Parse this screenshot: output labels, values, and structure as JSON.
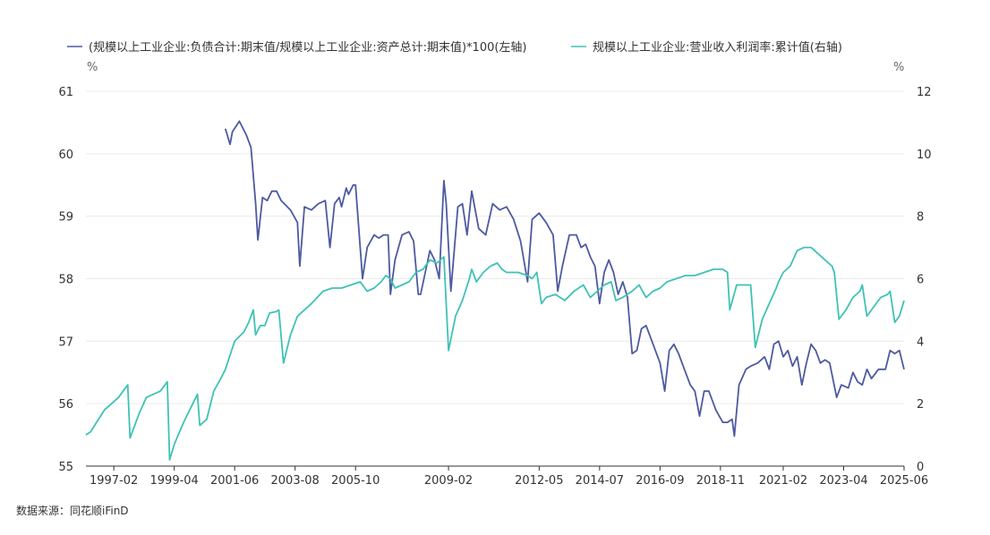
{
  "colors": {
    "left_series": "#4d5aa0",
    "right_series": "#3fc2b5",
    "grid": "#ebebeb",
    "axis": "#333333"
  },
  "source": "数据来源：同花顺iFinD",
  "chart_data": {
    "type": "line",
    "legend_position": "top",
    "grid": true,
    "y_left": {
      "unit": "%",
      "min": 55,
      "max": 61,
      "ticks": [
        "55",
        "56",
        "57",
        "58",
        "59",
        "60",
        "61"
      ]
    },
    "y_right": {
      "unit": "%",
      "min": 0,
      "max": 12,
      "ticks": [
        "0",
        "2",
        "4",
        "6",
        "8",
        "10",
        "12"
      ]
    },
    "x": {
      "min": "1996-02",
      "max": "2025-06",
      "tick_dates": [
        "1997-02",
        "1999-04",
        "2001-06",
        "2003-08",
        "2005-10",
        "2009-02",
        "2012-05",
        "2014-07",
        "2016-09",
        "2018-11",
        "2021-02",
        "2023-04",
        "2025-06"
      ]
    },
    "series": [
      {
        "name": "(规模以上工业企业:负债合计:期末值/规模以上工业企业:资产总计:期末值)*100(左轴)",
        "axis": "left",
        "points": [
          [
            "2001-02",
            60.4
          ],
          [
            "2001-04",
            60.15
          ],
          [
            "2001-05",
            60.35
          ],
          [
            "2001-08",
            60.52
          ],
          [
            "2001-11",
            60.3
          ],
          [
            "2002-01",
            60.1
          ],
          [
            "2002-03",
            59.2
          ],
          [
            "2002-04",
            58.62
          ],
          [
            "2002-06",
            59.3
          ],
          [
            "2002-08",
            59.25
          ],
          [
            "2002-10",
            59.4
          ],
          [
            "2002-12",
            59.4
          ],
          [
            "2003-02",
            59.25
          ],
          [
            "2003-06",
            59.1
          ],
          [
            "2003-09",
            58.9
          ],
          [
            "2003-10",
            58.2
          ],
          [
            "2003-12",
            59.15
          ],
          [
            "2004-03",
            59.1
          ],
          [
            "2004-06",
            59.2
          ],
          [
            "2004-09",
            59.25
          ],
          [
            "2004-11",
            58.5
          ],
          [
            "2005-01",
            59.2
          ],
          [
            "2005-03",
            59.3
          ],
          [
            "2005-04",
            59.15
          ],
          [
            "2005-06",
            59.45
          ],
          [
            "2005-07",
            59.35
          ],
          [
            "2005-09",
            59.5
          ],
          [
            "2005-10",
            59.5
          ],
          [
            "2005-11",
            59.0
          ],
          [
            "2006-01",
            58.0
          ],
          [
            "2006-03",
            58.5
          ],
          [
            "2006-06",
            58.7
          ],
          [
            "2006-08",
            58.65
          ],
          [
            "2006-10",
            58.7
          ],
          [
            "2006-12",
            58.7
          ],
          [
            "2007-01",
            57.75
          ],
          [
            "2007-03",
            58.3
          ],
          [
            "2007-06",
            58.7
          ],
          [
            "2007-09",
            58.75
          ],
          [
            "2007-11",
            58.6
          ],
          [
            "2008-01",
            57.75
          ],
          [
            "2008-02",
            57.75
          ],
          [
            "2008-04",
            58.1
          ],
          [
            "2008-06",
            58.45
          ],
          [
            "2008-08",
            58.3
          ],
          [
            "2008-10",
            58.0
          ],
          [
            "2008-12",
            59.57
          ],
          [
            "2009-01",
            59.2
          ],
          [
            "2009-03",
            57.8
          ],
          [
            "2009-06",
            59.15
          ],
          [
            "2009-08",
            59.2
          ],
          [
            "2009-10",
            58.7
          ],
          [
            "2009-12",
            59.4
          ],
          [
            "2010-03",
            58.8
          ],
          [
            "2010-06",
            58.7
          ],
          [
            "2010-09",
            59.2
          ],
          [
            "2010-12",
            59.1
          ],
          [
            "2011-03",
            59.15
          ],
          [
            "2011-06",
            58.95
          ],
          [
            "2011-09",
            58.6
          ],
          [
            "2011-12",
            57.95
          ],
          [
            "2012-02",
            58.95
          ],
          [
            "2012-05",
            59.05
          ],
          [
            "2012-08",
            58.9
          ],
          [
            "2012-11",
            58.7
          ],
          [
            "2013-01",
            57.8
          ],
          [
            "2013-03",
            58.2
          ],
          [
            "2013-06",
            58.7
          ],
          [
            "2013-09",
            58.7
          ],
          [
            "2013-11",
            58.5
          ],
          [
            "2014-01",
            58.55
          ],
          [
            "2014-03",
            58.35
          ],
          [
            "2014-05",
            58.2
          ],
          [
            "2014-07",
            57.6
          ],
          [
            "2014-09",
            58.1
          ],
          [
            "2014-11",
            58.3
          ],
          [
            "2015-01",
            58.1
          ],
          [
            "2015-03",
            57.75
          ],
          [
            "2015-05",
            57.95
          ],
          [
            "2015-07",
            57.7
          ],
          [
            "2015-09",
            56.8
          ],
          [
            "2015-11",
            56.85
          ],
          [
            "2016-01",
            57.2
          ],
          [
            "2016-03",
            57.25
          ],
          [
            "2016-05",
            57.05
          ],
          [
            "2016-07",
            56.85
          ],
          [
            "2016-09",
            56.65
          ],
          [
            "2016-11",
            56.2
          ],
          [
            "2017-01",
            56.85
          ],
          [
            "2017-03",
            56.95
          ],
          [
            "2017-05",
            56.8
          ],
          [
            "2017-08",
            56.5
          ],
          [
            "2017-10",
            56.3
          ],
          [
            "2017-12",
            56.2
          ],
          [
            "2018-02",
            55.8
          ],
          [
            "2018-04",
            56.2
          ],
          [
            "2018-06",
            56.2
          ],
          [
            "2018-09",
            55.9
          ],
          [
            "2018-12",
            55.7
          ],
          [
            "2019-02",
            55.7
          ],
          [
            "2019-04",
            55.75
          ],
          [
            "2019-05",
            55.48
          ],
          [
            "2019-07",
            56.3
          ],
          [
            "2019-10",
            56.55
          ],
          [
            "2019-12",
            56.6
          ],
          [
            "2020-03",
            56.65
          ],
          [
            "2020-06",
            56.75
          ],
          [
            "2020-08",
            56.55
          ],
          [
            "2020-10",
            56.95
          ],
          [
            "2020-12",
            57.0
          ],
          [
            "2021-02",
            56.75
          ],
          [
            "2021-04",
            56.85
          ],
          [
            "2021-06",
            56.6
          ],
          [
            "2021-08",
            56.75
          ],
          [
            "2021-10",
            56.3
          ],
          [
            "2021-12",
            56.65
          ],
          [
            "2022-02",
            56.95
          ],
          [
            "2022-04",
            56.85
          ],
          [
            "2022-06",
            56.65
          ],
          [
            "2022-08",
            56.7
          ],
          [
            "2022-10",
            56.65
          ],
          [
            "2023-01",
            56.1
          ],
          [
            "2023-03",
            56.3
          ],
          [
            "2023-06",
            56.25
          ],
          [
            "2023-08",
            56.5
          ],
          [
            "2023-10",
            56.35
          ],
          [
            "2023-12",
            56.3
          ],
          [
            "2024-02",
            56.55
          ],
          [
            "2024-04",
            56.4
          ],
          [
            "2024-07",
            56.55
          ],
          [
            "2024-10",
            56.55
          ],
          [
            "2024-12",
            56.85
          ],
          [
            "2025-02",
            56.8
          ],
          [
            "2025-04",
            56.85
          ],
          [
            "2025-06",
            56.55
          ]
        ]
      },
      {
        "name": "规模以上工业企业:营业收入利润率:累计值(右轴)",
        "axis": "right",
        "points": [
          [
            "1996-02",
            1.0
          ],
          [
            "1996-04",
            1.1
          ],
          [
            "1996-10",
            1.8
          ],
          [
            "1997-04",
            2.2
          ],
          [
            "1997-08",
            2.6
          ],
          [
            "1997-09",
            0.9
          ],
          [
            "1998-01",
            1.7
          ],
          [
            "1998-04",
            2.2
          ],
          [
            "1998-10",
            2.4
          ],
          [
            "1999-01",
            2.7
          ],
          [
            "1999-02",
            0.2
          ],
          [
            "1999-04",
            0.7
          ],
          [
            "1999-08",
            1.4
          ],
          [
            "1999-12",
            2.0
          ],
          [
            "2000-02",
            2.3
          ],
          [
            "2000-03",
            1.3
          ],
          [
            "2000-06",
            1.5
          ],
          [
            "2000-09",
            2.4
          ],
          [
            "2000-12",
            2.8
          ],
          [
            "2001-02",
            3.1
          ],
          [
            "2001-06",
            4.0
          ],
          [
            "2001-10",
            4.3
          ],
          [
            "2001-12",
            4.6
          ],
          [
            "2002-02",
            5.0
          ],
          [
            "2002-03",
            4.2
          ],
          [
            "2002-05",
            4.5
          ],
          [
            "2002-07",
            4.5
          ],
          [
            "2002-09",
            4.9
          ],
          [
            "2002-12",
            4.95
          ],
          [
            "2003-01",
            5.0
          ],
          [
            "2003-03",
            3.3
          ],
          [
            "2003-06",
            4.2
          ],
          [
            "2003-09",
            4.8
          ],
          [
            "2003-12",
            5.0
          ],
          [
            "2004-03",
            5.2
          ],
          [
            "2004-08",
            5.6
          ],
          [
            "2004-12",
            5.7
          ],
          [
            "2005-04",
            5.7
          ],
          [
            "2005-08",
            5.8
          ],
          [
            "2005-12",
            5.9
          ],
          [
            "2006-03",
            5.6
          ],
          [
            "2006-06",
            5.7
          ],
          [
            "2006-09",
            5.9
          ],
          [
            "2006-11",
            6.1
          ],
          [
            "2007-01",
            6.0
          ],
          [
            "2007-03",
            5.7
          ],
          [
            "2007-06",
            5.8
          ],
          [
            "2007-09",
            5.9
          ],
          [
            "2007-12",
            6.2
          ],
          [
            "2008-03",
            6.3
          ],
          [
            "2008-06",
            6.6
          ],
          [
            "2008-09",
            6.5
          ],
          [
            "2008-12",
            6.7
          ],
          [
            "2009-02",
            3.7
          ],
          [
            "2009-05",
            4.8
          ],
          [
            "2009-08",
            5.3
          ],
          [
            "2009-11",
            6.0
          ],
          [
            "2009-12",
            6.3
          ],
          [
            "2010-02",
            5.9
          ],
          [
            "2010-05",
            6.2
          ],
          [
            "2010-08",
            6.4
          ],
          [
            "2010-11",
            6.5
          ],
          [
            "2011-01",
            6.3
          ],
          [
            "2011-03",
            6.2
          ],
          [
            "2011-08",
            6.2
          ],
          [
            "2011-12",
            6.1
          ],
          [
            "2012-02",
            6.0
          ],
          [
            "2012-04",
            6.2
          ],
          [
            "2012-06",
            5.2
          ],
          [
            "2012-08",
            5.4
          ],
          [
            "2012-12",
            5.5
          ],
          [
            "2013-04",
            5.3
          ],
          [
            "2013-08",
            5.6
          ],
          [
            "2013-12",
            5.8
          ],
          [
            "2014-03",
            5.4
          ],
          [
            "2014-06",
            5.6
          ],
          [
            "2014-09",
            5.8
          ],
          [
            "2014-12",
            5.9
          ],
          [
            "2015-02",
            5.3
          ],
          [
            "2015-05",
            5.4
          ],
          [
            "2015-09",
            5.6
          ],
          [
            "2015-12",
            5.8
          ],
          [
            "2016-03",
            5.4
          ],
          [
            "2016-06",
            5.6
          ],
          [
            "2016-09",
            5.7
          ],
          [
            "2016-12",
            5.9
          ],
          [
            "2017-04",
            6.0
          ],
          [
            "2017-08",
            6.1
          ],
          [
            "2017-12",
            6.1
          ],
          [
            "2018-04",
            6.2
          ],
          [
            "2018-08",
            6.3
          ],
          [
            "2018-12",
            6.3
          ],
          [
            "2019-02",
            6.2
          ],
          [
            "2019-03",
            5.0
          ],
          [
            "2019-06",
            5.8
          ],
          [
            "2019-09",
            5.8
          ],
          [
            "2019-12",
            5.8
          ],
          [
            "2020-02",
            3.8
          ],
          [
            "2020-05",
            4.7
          ],
          [
            "2020-08",
            5.2
          ],
          [
            "2020-11",
            5.7
          ],
          [
            "2020-12",
            5.9
          ],
          [
            "2021-02",
            6.2
          ],
          [
            "2021-05",
            6.4
          ],
          [
            "2021-08",
            6.9
          ],
          [
            "2021-11",
            7.0
          ],
          [
            "2022-02",
            7.0
          ],
          [
            "2022-05",
            6.8
          ],
          [
            "2022-08",
            6.6
          ],
          [
            "2022-11",
            6.4
          ],
          [
            "2022-12",
            6.2
          ],
          [
            "2023-02",
            4.7
          ],
          [
            "2023-05",
            5.0
          ],
          [
            "2023-08",
            5.4
          ],
          [
            "2023-11",
            5.6
          ],
          [
            "2023-12",
            5.8
          ],
          [
            "2024-02",
            4.8
          ],
          [
            "2024-05",
            5.1
          ],
          [
            "2024-08",
            5.4
          ],
          [
            "2024-11",
            5.5
          ],
          [
            "2024-12",
            5.6
          ],
          [
            "2025-02",
            4.6
          ],
          [
            "2025-04",
            4.8
          ],
          [
            "2025-06",
            5.3
          ]
        ]
      }
    ]
  }
}
